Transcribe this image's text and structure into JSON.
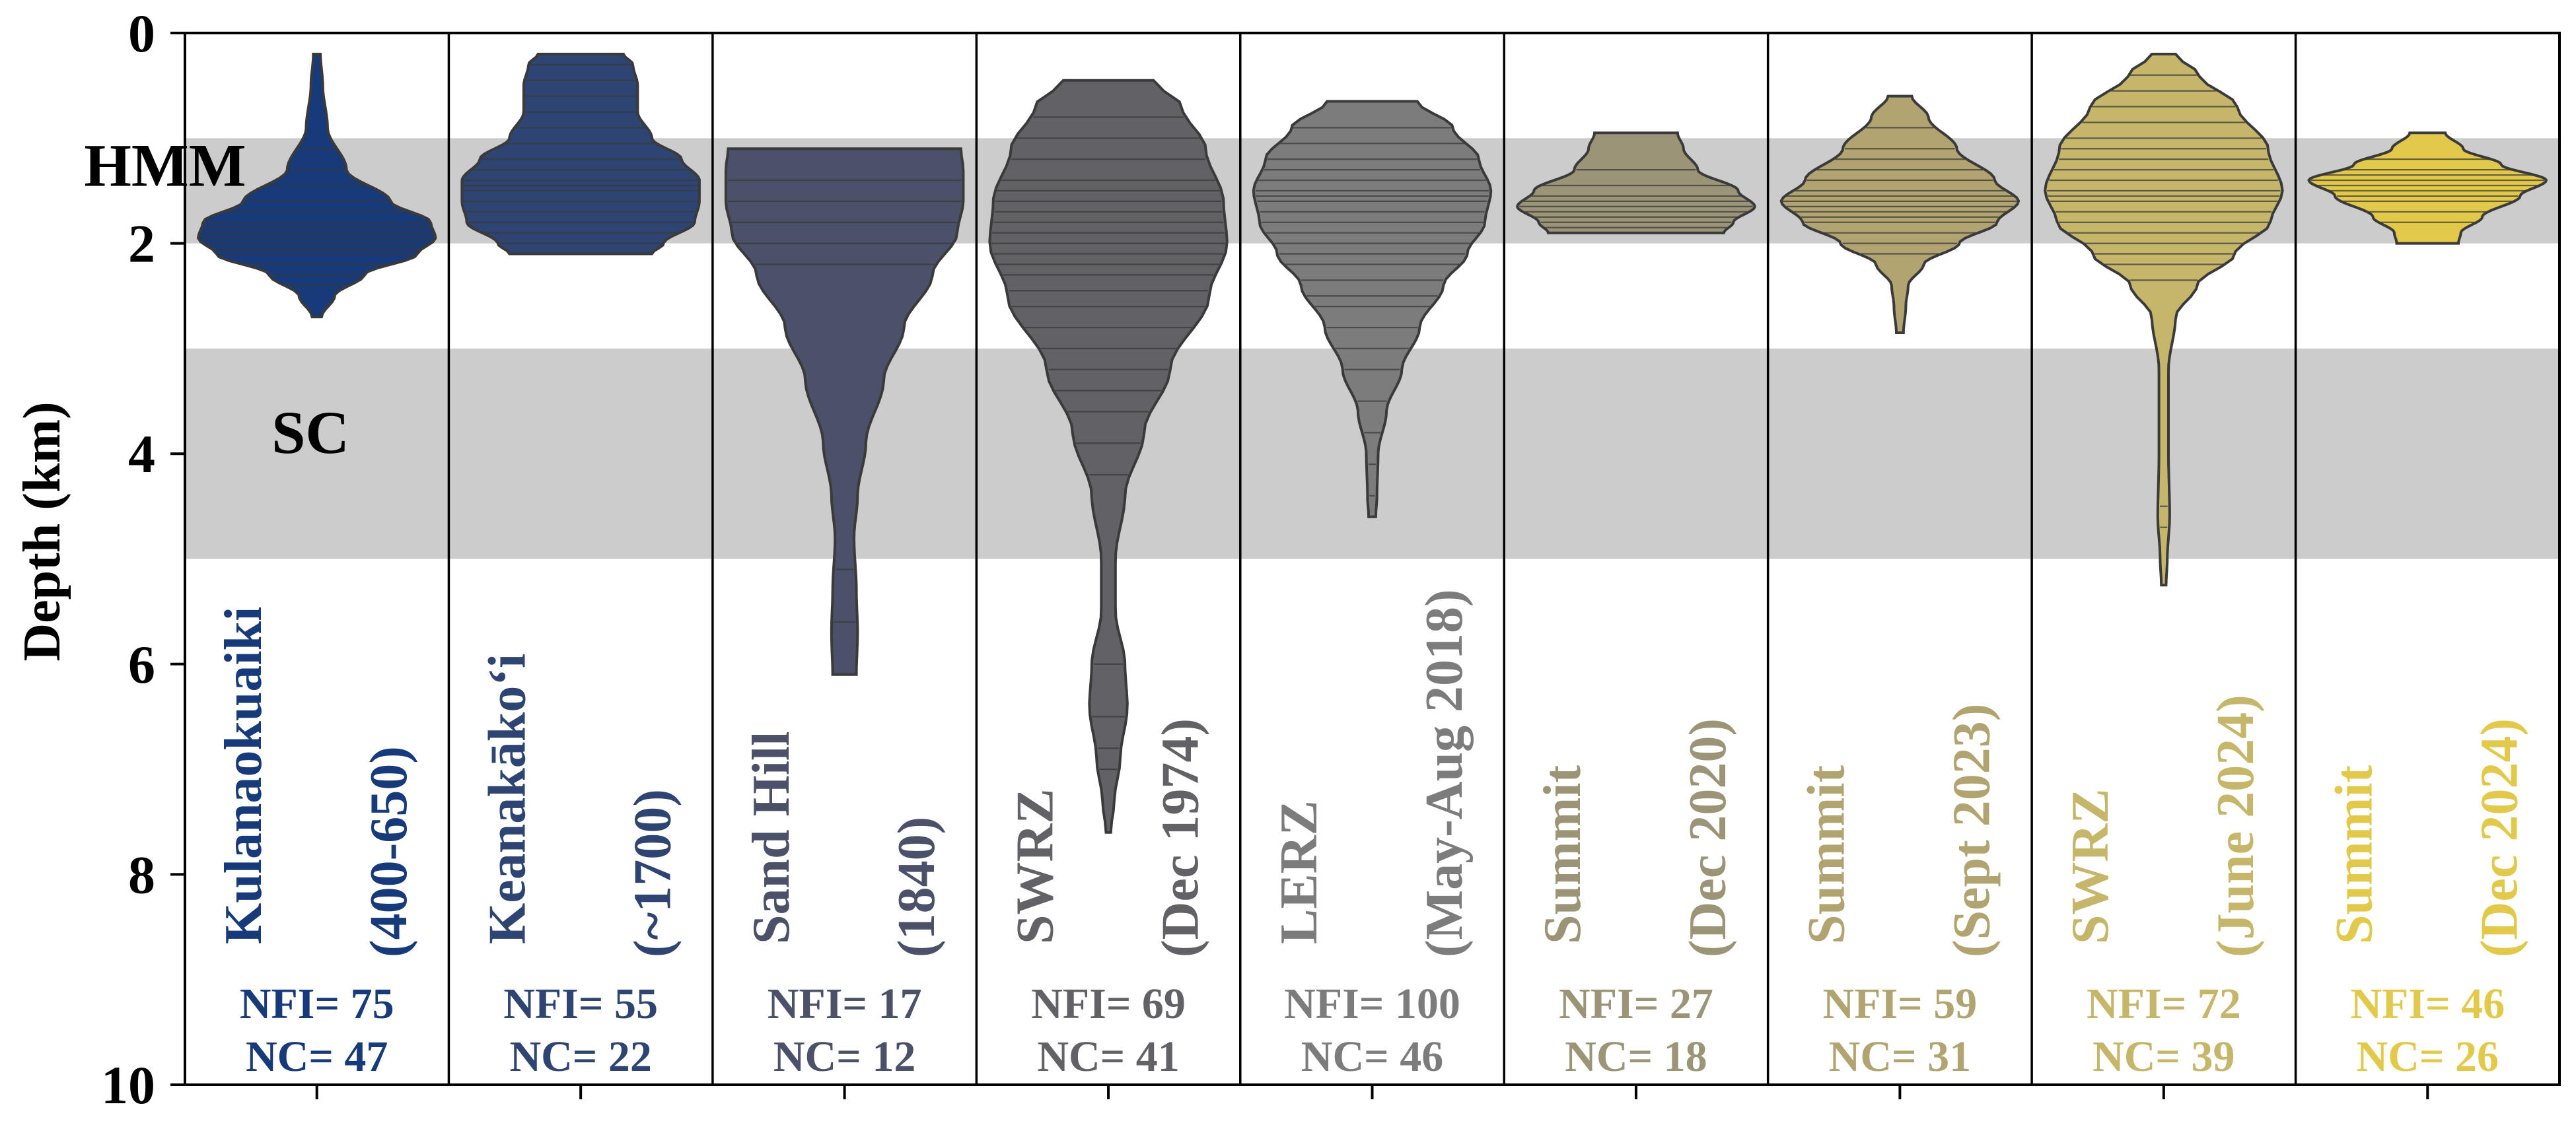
{
  "chart_data": {
    "type": "violin",
    "ylabel": "Depth (km)",
    "ylim": [
      0,
      10
    ],
    "y_inverted": true,
    "yticks": [
      "0",
      "2",
      "4",
      "6",
      "8",
      "10"
    ],
    "grid": false,
    "bands": [
      {
        "label": "HMM",
        "from": 1.0,
        "to": 2.0,
        "color": "#cccccc"
      },
      {
        "label": "SC",
        "from": 3.0,
        "to": 5.0,
        "color": "#cccccc"
      }
    ],
    "series": [
      {
        "name": "Kulanaokuaiki",
        "period": "(400-650)",
        "nfi": "NFI= 75",
        "nc": "NC= 47",
        "color": "#163a7a",
        "min": 0.2,
        "max": 2.7,
        "profile": [
          [
            0.2,
            0.03
          ],
          [
            0.5,
            0.05
          ],
          [
            0.9,
            0.09
          ],
          [
            1.3,
            0.25
          ],
          [
            1.6,
            0.62
          ],
          [
            1.8,
            0.96
          ],
          [
            1.95,
            1.0
          ],
          [
            2.1,
            0.85
          ],
          [
            2.3,
            0.4
          ],
          [
            2.5,
            0.15
          ],
          [
            2.7,
            0.04
          ]
        ],
        "lines": [
          1.1,
          1.3,
          1.45,
          1.6,
          1.7,
          1.8,
          1.85,
          1.9,
          1.95,
          2.0,
          2.05,
          2.1,
          2.2,
          2.3,
          2.4
        ]
      },
      {
        "name": "Keanakāko‘i",
        "period": "(~1700)",
        "nfi": "NFI= 55",
        "nc": "NC= 22",
        "color": "#2e4472",
        "min": 0.2,
        "max": 2.1,
        "profile": [
          [
            0.2,
            0.36
          ],
          [
            0.3,
            0.44
          ],
          [
            0.5,
            0.48
          ],
          [
            0.75,
            0.48
          ],
          [
            1.0,
            0.6
          ],
          [
            1.2,
            0.85
          ],
          [
            1.4,
            1.0
          ],
          [
            1.6,
            1.0
          ],
          [
            1.8,
            0.96
          ],
          [
            2.0,
            0.7
          ],
          [
            2.1,
            0.6
          ]
        ],
        "lines": [
          0.3,
          0.45,
          0.6,
          0.75,
          0.9,
          1.05,
          1.2,
          1.3,
          1.4,
          1.45,
          1.5,
          1.6,
          1.7,
          1.8,
          1.9,
          2.0
        ]
      },
      {
        "name": "Sand Hill",
        "period": "(1840)",
        "nfi": "NFI= 17",
        "nc": "NC= 12",
        "color": "#4a5168",
        "min": 1.1,
        "max": 6.1,
        "profile": [
          [
            1.1,
            0.98
          ],
          [
            1.3,
            1.0
          ],
          [
            1.6,
            1.0
          ],
          [
            1.9,
            0.95
          ],
          [
            2.3,
            0.74
          ],
          [
            2.8,
            0.5
          ],
          [
            3.3,
            0.33
          ],
          [
            3.9,
            0.18
          ],
          [
            4.4,
            0.11
          ],
          [
            4.8,
            0.08
          ],
          [
            5.3,
            0.1
          ],
          [
            5.7,
            0.11
          ],
          [
            6.1,
            0.1
          ]
        ],
        "lines": [
          1.4,
          1.6,
          1.8,
          2.0,
          2.2,
          5.1,
          5.6
        ]
      },
      {
        "name": "SWRZ",
        "period": "(Dec 1974)",
        "nfi": "NFI= 69",
        "nc": "NC= 41",
        "color": "#626266",
        "min": 0.45,
        "max": 7.6,
        "profile": [
          [
            0.45,
            0.38
          ],
          [
            0.7,
            0.62
          ],
          [
            1.1,
            0.82
          ],
          [
            1.6,
            0.97
          ],
          [
            2.0,
            1.0
          ],
          [
            2.5,
            0.85
          ],
          [
            3.2,
            0.52
          ],
          [
            3.8,
            0.3
          ],
          [
            4.4,
            0.14
          ],
          [
            5.0,
            0.06
          ],
          [
            5.5,
            0.06
          ],
          [
            6.0,
            0.14
          ],
          [
            6.4,
            0.16
          ],
          [
            6.9,
            0.1
          ],
          [
            7.3,
            0.05
          ],
          [
            7.6,
            0.02
          ]
        ],
        "lines": [
          0.8,
          1.0,
          1.2,
          1.4,
          1.5,
          1.6,
          1.7,
          1.8,
          1.9,
          2.0,
          2.1,
          2.2,
          2.3,
          2.45,
          2.6,
          2.8,
          3.0,
          3.2,
          3.4,
          3.6,
          3.9,
          4.2,
          6.0,
          6.5,
          6.8,
          7.0
        ]
      },
      {
        "name": "LERZ",
        "period": "(May-Aug 2018)",
        "nfi": "NFI= 100",
        "nc": "NC= 46",
        "color": "#7d7c7c",
        "min": 0.65,
        "max": 4.6,
        "profile": [
          [
            0.65,
            0.38
          ],
          [
            0.9,
            0.68
          ],
          [
            1.2,
            0.9
          ],
          [
            1.5,
            1.0
          ],
          [
            1.8,
            0.95
          ],
          [
            2.1,
            0.8
          ],
          [
            2.4,
            0.6
          ],
          [
            2.8,
            0.4
          ],
          [
            3.2,
            0.25
          ],
          [
            3.6,
            0.12
          ],
          [
            4.0,
            0.05
          ],
          [
            4.4,
            0.04
          ],
          [
            4.6,
            0.03
          ]
        ],
        "lines": [
          0.9,
          1.05,
          1.2,
          1.3,
          1.4,
          1.5,
          1.55,
          1.6,
          1.7,
          1.8,
          1.9,
          2.0,
          2.1,
          2.2,
          2.35,
          2.5,
          2.6,
          2.8,
          3.0,
          3.2,
          3.5,
          3.8,
          4.1,
          4.4
        ]
      },
      {
        "name": "Summit",
        "period": "(Dec 2020)",
        "nfi": "NFI= 27",
        "nc": "NC= 18",
        "color": "#9c9477",
        "min": 0.95,
        "max": 1.9,
        "profile": [
          [
            0.95,
            0.35
          ],
          [
            1.1,
            0.4
          ],
          [
            1.3,
            0.52
          ],
          [
            1.5,
            0.86
          ],
          [
            1.65,
            1.0
          ],
          [
            1.8,
            0.82
          ],
          [
            1.9,
            0.74
          ]
        ],
        "lines": [
          1.3,
          1.45,
          1.55,
          1.6,
          1.65,
          1.7,
          1.75,
          1.8,
          1.85
        ]
      },
      {
        "name": "Summit",
        "period": "(Sept 2023)",
        "nfi": "NFI= 59",
        "nc": "NC= 31",
        "color": "#b1a470",
        "min": 0.6,
        "max": 2.85,
        "profile": [
          [
            0.6,
            0.1
          ],
          [
            0.8,
            0.24
          ],
          [
            1.1,
            0.48
          ],
          [
            1.4,
            0.8
          ],
          [
            1.6,
            1.0
          ],
          [
            1.8,
            0.82
          ],
          [
            2.0,
            0.5
          ],
          [
            2.2,
            0.2
          ],
          [
            2.4,
            0.07
          ],
          [
            2.6,
            0.05
          ],
          [
            2.85,
            0.03
          ]
        ],
        "lines": [
          0.9,
          1.1,
          1.2,
          1.3,
          1.4,
          1.5,
          1.55,
          1.6,
          1.65,
          1.7,
          1.75,
          1.8,
          1.9,
          2.0,
          2.1
        ]
      },
      {
        "name": "SWRZ",
        "period": "(June 2024)",
        "nfi": "NFI= 72",
        "nc": "NC= 39",
        "color": "#c6b66a",
        "min": 0.2,
        "max": 5.25,
        "profile": [
          [
            0.2,
            0.1
          ],
          [
            0.4,
            0.3
          ],
          [
            0.7,
            0.62
          ],
          [
            1.1,
            0.88
          ],
          [
            1.5,
            1.0
          ],
          [
            1.8,
            0.9
          ],
          [
            2.1,
            0.6
          ],
          [
            2.4,
            0.28
          ],
          [
            2.7,
            0.1
          ],
          [
            3.2,
            0.04
          ],
          [
            4.0,
            0.04
          ],
          [
            4.6,
            0.05
          ],
          [
            5.0,
            0.03
          ],
          [
            5.25,
            0.02
          ]
        ],
        "lines": [
          0.4,
          0.55,
          0.7,
          0.85,
          1.0,
          1.1,
          1.2,
          1.3,
          1.4,
          1.5,
          1.55,
          1.6,
          1.7,
          1.8,
          1.9,
          2.0,
          2.1,
          2.2,
          2.35,
          4.5,
          4.7
        ]
      },
      {
        "name": "Summit",
        "period": "(Dec 2024)",
        "nfi": "NFI= 46",
        "nc": "NC= 26",
        "color": "#e2c94a",
        "min": 0.95,
        "max": 2.0,
        "profile": [
          [
            0.95,
            0.15
          ],
          [
            1.1,
            0.3
          ],
          [
            1.25,
            0.62
          ],
          [
            1.4,
            1.0
          ],
          [
            1.55,
            0.78
          ],
          [
            1.75,
            0.46
          ],
          [
            1.9,
            0.28
          ],
          [
            2.0,
            0.26
          ]
        ],
        "lines": [
          1.2,
          1.3,
          1.35,
          1.4,
          1.45,
          1.5,
          1.55,
          1.6,
          1.7,
          1.8
        ]
      }
    ]
  }
}
